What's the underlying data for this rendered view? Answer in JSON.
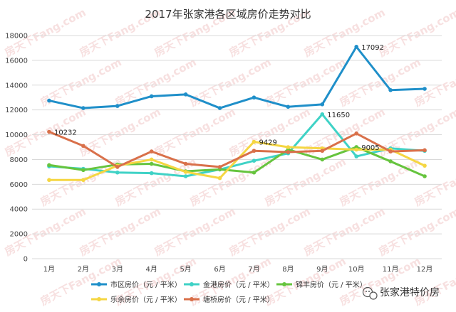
{
  "chart_data": {
    "type": "line",
    "title": "2017年张家港各区域房价走势对比",
    "categories": [
      "1月",
      "2月",
      "3月",
      "4月",
      "5月",
      "6月",
      "7月",
      "8月",
      "9月",
      "10月",
      "11月",
      "12月"
    ],
    "ylim": [
      0,
      18000
    ],
    "yticks": [
      0,
      2000,
      4000,
      6000,
      8000,
      10000,
      12000,
      14000,
      16000,
      18000
    ],
    "grid": true,
    "legend_position": "bottom",
    "series": [
      {
        "name": "市区房价（元 / 平米）",
        "color": "#1f8fc9",
        "values": [
          12750,
          12150,
          12320,
          13100,
          13250,
          12150,
          13000,
          12250,
          12450,
          17092,
          13600,
          13700
        ]
      },
      {
        "name": "金港房价（元 / 平米）",
        "color": "#3fd2c6",
        "values": [
          7450,
          7250,
          6950,
          6900,
          6650,
          7200,
          7900,
          8500,
          11650,
          8250,
          8900,
          8700
        ]
      },
      {
        "name": "锦丰房价（元 / 平米）",
        "color": "#66c43e",
        "values": [
          7550,
          7150,
          7600,
          7650,
          7050,
          7200,
          6950,
          8800,
          8000,
          9005,
          7850,
          6650
        ]
      },
      {
        "name": "乐余房价（元 / 平米）",
        "color": "#f5d642",
        "values": [
          6350,
          6350,
          7500,
          8000,
          7000,
          6500,
          9429,
          9000,
          8900,
          8800,
          8800,
          7500
        ]
      },
      {
        "name": "塘桥房价（元 / 平米）",
        "color": "#d9704a",
        "values": [
          10232,
          9100,
          7400,
          8650,
          7650,
          7400,
          8700,
          8600,
          8700,
          10100,
          8650,
          8750
        ]
      }
    ],
    "data_labels": [
      {
        "series": 0,
        "index": 9,
        "text": "17092"
      },
      {
        "series": 1,
        "index": 8,
        "text": "11650"
      },
      {
        "series": 2,
        "index": 9,
        "text": "9005"
      },
      {
        "series": 3,
        "index": 6,
        "text": "9429"
      },
      {
        "series": 4,
        "index": 0,
        "text": "10232"
      }
    ]
  },
  "watermark_text": "房天下Fang.com",
  "brand": {
    "name": "张家港特价房",
    "icon": "wechat-icon"
  }
}
